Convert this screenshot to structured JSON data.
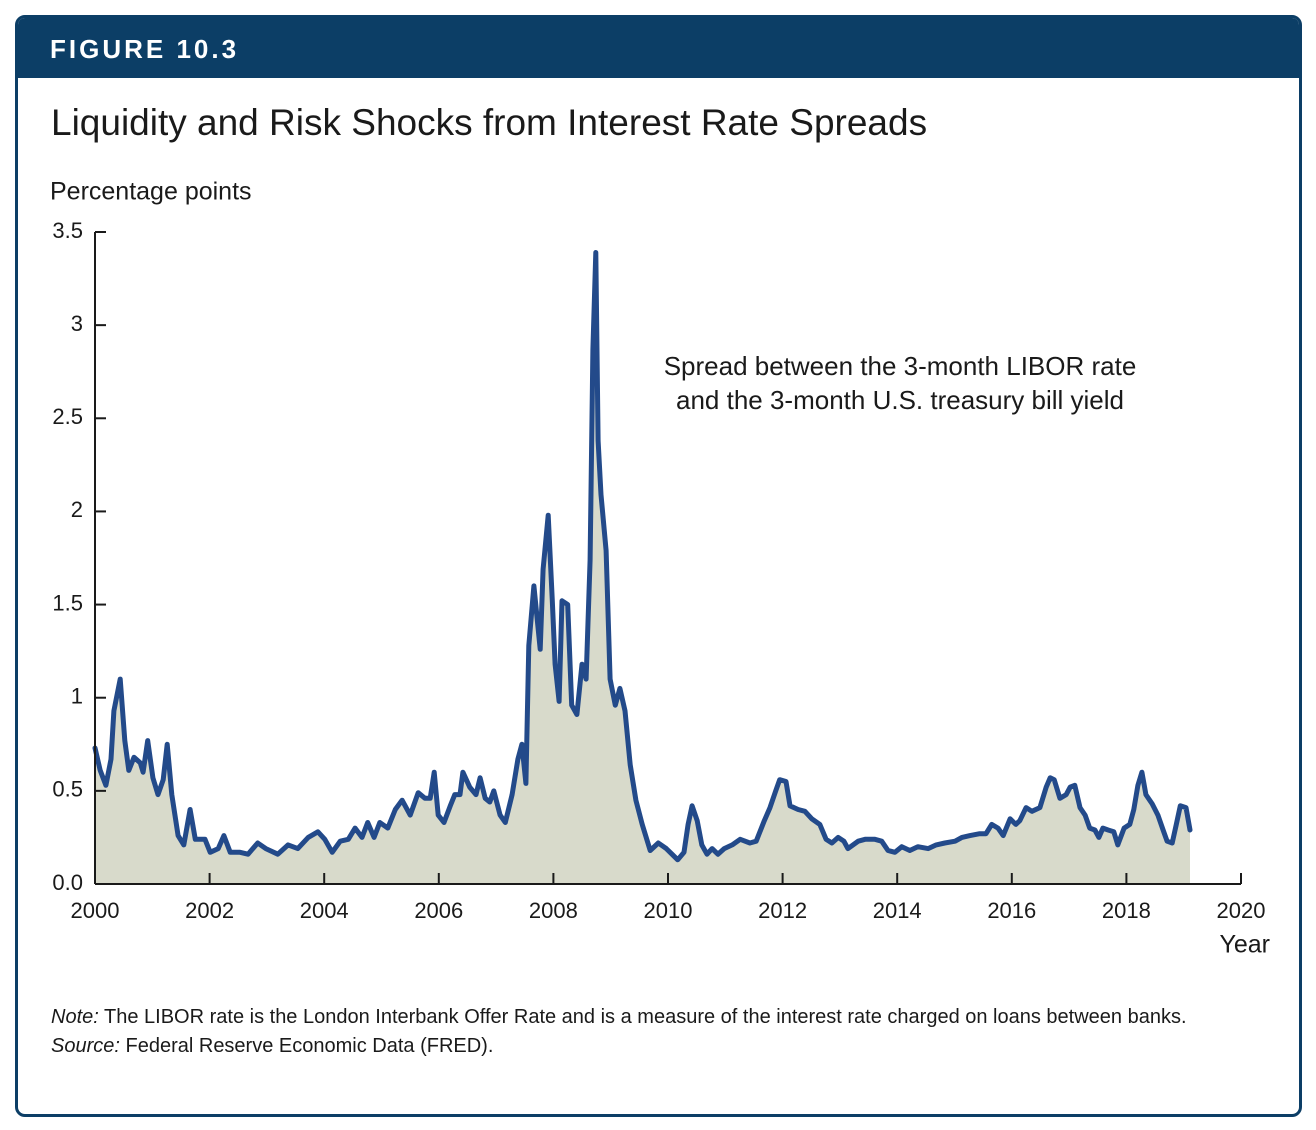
{
  "chart_data": {
    "type": "line",
    "figure_label": "FIGURE 10.3",
    "title": "Liquidity and Risk Shocks from Interest Rate Spreads",
    "ylabel": "Percentage points",
    "xlabel": "Year",
    "annotation": [
      "Spread between the 3-month LIBOR rate",
      "and the 3-month U.S. treasury bill yield"
    ],
    "note_label": "Note:",
    "note": "The LIBOR rate is the London Interbank Offer Rate and is a measure of the interest rate charged on loans between banks.",
    "source_label": "Source:",
    "source": "Federal Reserve Economic Data (FRED).",
    "color": "#234a8a",
    "fill": "#d8dacb",
    "xlim": [
      2000,
      2020
    ],
    "ylim": [
      0,
      3.5
    ],
    "xticks": [
      2000,
      2002,
      2004,
      2006,
      2008,
      2010,
      2012,
      2014,
      2016,
      2018,
      2020
    ],
    "yticks": [
      {
        "value": 0,
        "label": "0.0"
      },
      0.5,
      1,
      1.5,
      2,
      2.5,
      3,
      3.5
    ],
    "x": [
      2000.0,
      2000.09,
      2000.19,
      2000.28,
      2000.33,
      2000.44,
      2000.52,
      2000.59,
      2000.68,
      2000.79,
      2000.84,
      2000.92,
      2001.01,
      2001.1,
      2001.19,
      2001.26,
      2001.34,
      2001.45,
      2001.55,
      2001.66,
      2001.75,
      2001.83,
      2001.92,
      2002.01,
      2002.15,
      2002.25,
      2002.36,
      2002.53,
      2002.67,
      2002.84,
      2002.98,
      2003.19,
      2003.37,
      2003.54,
      2003.72,
      2003.89,
      2004.01,
      2004.14,
      2004.28,
      2004.42,
      2004.54,
      2004.66,
      2004.76,
      2004.87,
      2004.97,
      2005.11,
      2005.24,
      2005.36,
      2005.5,
      2005.64,
      2005.76,
      2005.85,
      2005.92,
      2005.99,
      2006.09,
      2006.2,
      2006.28,
      2006.37,
      2006.42,
      2006.54,
      2006.65,
      2006.72,
      2006.81,
      2006.89,
      2006.96,
      2007.07,
      2007.16,
      2007.28,
      2007.38,
      2007.45,
      2007.52,
      2007.57,
      2007.66,
      2007.77,
      2007.82,
      2007.91,
      2007.98,
      2008.03,
      2008.1,
      2008.15,
      2008.25,
      2008.32,
      2008.41,
      2008.5,
      2008.57,
      2008.64,
      2008.69,
      2008.74,
      2008.78,
      2008.83,
      2008.92,
      2008.99,
      2009.08,
      2009.16,
      2009.25,
      2009.34,
      2009.44,
      2009.55,
      2009.69,
      2009.83,
      2009.97,
      2010.07,
      2010.17,
      2010.28,
      2010.35,
      2010.42,
      2010.51,
      2010.59,
      2010.68,
      2010.77,
      2010.87,
      2010.98,
      2011.12,
      2011.26,
      2011.43,
      2011.54,
      2011.68,
      2011.78,
      2011.88,
      2011.95,
      2012.06,
      2012.13,
      2012.27,
      2012.39,
      2012.51,
      2012.65,
      2012.76,
      2012.86,
      2012.97,
      2013.07,
      2013.14,
      2013.32,
      2013.44,
      2013.61,
      2013.73,
      2013.84,
      2013.96,
      2014.08,
      2014.22,
      2014.36,
      2014.54,
      2014.68,
      2014.83,
      2015.01,
      2015.13,
      2015.27,
      2015.44,
      2015.55,
      2015.65,
      2015.76,
      2015.85,
      2015.97,
      2016.07,
      2016.14,
      2016.25,
      2016.35,
      2016.49,
      2016.6,
      2016.67,
      2016.74,
      2016.84,
      2016.95,
      2017.02,
      2017.1,
      2017.19,
      2017.28,
      2017.36,
      2017.45,
      2017.52,
      2017.59,
      2017.68,
      2017.78,
      2017.85,
      2017.96,
      2018.06,
      2018.13,
      2018.2,
      2018.27,
      2018.34,
      2018.45,
      2018.55,
      2018.64,
      2018.71,
      2018.8,
      2018.87,
      2018.94,
      2019.04,
      2019.11
    ],
    "values": [
      0.73,
      0.61,
      0.53,
      0.67,
      0.93,
      1.1,
      0.77,
      0.61,
      0.68,
      0.65,
      0.6,
      0.77,
      0.57,
      0.48,
      0.56,
      0.75,
      0.48,
      0.26,
      0.21,
      0.4,
      0.24,
      0.24,
      0.24,
      0.17,
      0.19,
      0.26,
      0.17,
      0.17,
      0.16,
      0.22,
      0.19,
      0.16,
      0.21,
      0.19,
      0.25,
      0.28,
      0.24,
      0.17,
      0.23,
      0.24,
      0.3,
      0.25,
      0.33,
      0.25,
      0.33,
      0.3,
      0.4,
      0.45,
      0.37,
      0.49,
      0.46,
      0.46,
      0.6,
      0.37,
      0.33,
      0.42,
      0.48,
      0.48,
      0.6,
      0.52,
      0.48,
      0.57,
      0.46,
      0.44,
      0.5,
      0.37,
      0.33,
      0.48,
      0.67,
      0.75,
      0.54,
      1.28,
      1.6,
      1.26,
      1.69,
      1.98,
      1.52,
      1.18,
      0.98,
      1.52,
      1.5,
      0.96,
      0.91,
      1.18,
      1.1,
      1.74,
      2.87,
      3.39,
      2.38,
      2.09,
      1.79,
      1.1,
      0.96,
      1.05,
      0.93,
      0.64,
      0.45,
      0.32,
      0.18,
      0.22,
      0.19,
      0.16,
      0.13,
      0.17,
      0.32,
      0.42,
      0.34,
      0.21,
      0.16,
      0.19,
      0.16,
      0.19,
      0.21,
      0.24,
      0.22,
      0.23,
      0.34,
      0.41,
      0.5,
      0.56,
      0.55,
      0.42,
      0.4,
      0.39,
      0.35,
      0.32,
      0.24,
      0.22,
      0.25,
      0.23,
      0.19,
      0.23,
      0.24,
      0.24,
      0.23,
      0.18,
      0.17,
      0.2,
      0.18,
      0.2,
      0.19,
      0.21,
      0.22,
      0.23,
      0.25,
      0.26,
      0.27,
      0.27,
      0.32,
      0.3,
      0.26,
      0.35,
      0.32,
      0.34,
      0.41,
      0.39,
      0.41,
      0.52,
      0.57,
      0.56,
      0.46,
      0.48,
      0.52,
      0.53,
      0.41,
      0.37,
      0.3,
      0.29,
      0.25,
      0.3,
      0.29,
      0.28,
      0.21,
      0.3,
      0.32,
      0.4,
      0.53,
      0.6,
      0.48,
      0.43,
      0.37,
      0.29,
      0.23,
      0.22,
      0.32,
      0.42,
      0.41,
      0.29
    ]
  }
}
